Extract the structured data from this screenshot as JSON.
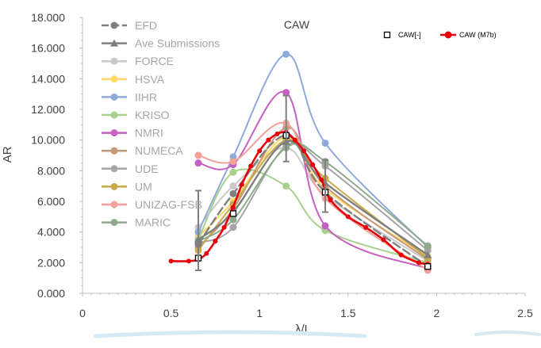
{
  "chart_data": {
    "type": "line",
    "title": "CAW",
    "xlabel": "λ/L",
    "ylabel": "AR",
    "xlim": [
      0,
      2.5
    ],
    "ylim": [
      0,
      18
    ],
    "x_ticks": [
      "0",
      "0.5",
      "1",
      "1.5",
      "2",
      "2.5"
    ],
    "y_ticks": [
      "0.000",
      "2.000",
      "4.000",
      "6.000",
      "8.000",
      "10.000",
      "12.000",
      "14.000",
      "16.000",
      "18.000"
    ],
    "legend_left_position": "top-left",
    "legend_right_position": "top-right",
    "series": [
      {
        "name": "EFD",
        "color": "#7f7f7f",
        "style": "dash",
        "marker": "circle",
        "legend": "left",
        "label_color": "#a6a6a6",
        "points": [
          [
            0.654,
            3.2
          ],
          [
            0.851,
            6.5
          ],
          [
            1.15,
            10.3
          ],
          [
            1.371,
            6.6
          ],
          [
            1.95,
            1.75
          ]
        ]
      },
      {
        "name": "Ave Submissions",
        "color": "#7f7f7f",
        "style": "solid",
        "marker": "triangle",
        "legend": "left",
        "label_color": "#a6a6a6",
        "points": [
          [
            0.654,
            3.5
          ],
          [
            0.851,
            5.3
          ],
          [
            1.15,
            9.9
          ],
          [
            1.371,
            7.2
          ],
          [
            1.95,
            2.5
          ]
        ]
      },
      {
        "name": "FORCE",
        "color": "#c9c9c9",
        "style": "solid",
        "marker": "circle",
        "legend": "left",
        "label_color": "#a6a6a6",
        "points": [
          [
            0.654,
            4.3
          ],
          [
            0.851,
            7.0
          ],
          [
            1.15,
            9.5
          ],
          [
            1.371,
            6.4
          ],
          [
            1.95,
            2.1
          ]
        ]
      },
      {
        "name": "HSVA",
        "color": "#ffd966",
        "style": "solid",
        "marker": "circle",
        "legend": "left",
        "label_color": "#a6a6a6",
        "points": [
          [
            0.654,
            3.7
          ],
          [
            0.851,
            6.0
          ],
          [
            1.15,
            10.2
          ],
          [
            1.371,
            6.8
          ],
          [
            1.95,
            2.4
          ]
        ]
      },
      {
        "name": "IIHR",
        "color": "#8eaadb",
        "style": "solid",
        "marker": "circle",
        "legend": "left",
        "label_color": "#a6a6a6",
        "points": [
          [
            0.654,
            4.0
          ],
          [
            0.851,
            8.9
          ],
          [
            1.15,
            15.6
          ],
          [
            1.371,
            9.8
          ],
          [
            1.95,
            3.0
          ]
        ]
      },
      {
        "name": "KRISO",
        "color": "#a9d18e",
        "style": "solid",
        "marker": "circle",
        "legend": "left",
        "label_color": "#a6a6a6",
        "points": [
          [
            0.654,
            3.5
          ],
          [
            0.851,
            7.9
          ],
          [
            1.15,
            7.0
          ],
          [
            1.371,
            4.1
          ],
          [
            1.95,
            2.0
          ]
        ]
      },
      {
        "name": "NMRI",
        "color": "#c55fc2",
        "style": "solid",
        "marker": "circle",
        "legend": "left",
        "label_color": "#a6a6a6",
        "points": [
          [
            0.654,
            8.5
          ],
          [
            0.851,
            8.4
          ],
          [
            1.15,
            13.1
          ],
          [
            1.371,
            4.4
          ],
          [
            1.95,
            1.6
          ]
        ]
      },
      {
        "name": "NUMECA",
        "color": "#c39a7a",
        "style": "solid",
        "marker": "circle",
        "legend": "left",
        "label_color": "#a6a6a6",
        "points": [
          [
            0.654,
            3.0
          ],
          [
            0.851,
            5.5
          ],
          [
            1.15,
            10.8
          ],
          [
            1.371,
            7.0
          ],
          [
            1.95,
            2.2
          ]
        ]
      },
      {
        "name": "UDE",
        "color": "#a5a5a5",
        "style": "solid",
        "marker": "circle",
        "legend": "left",
        "label_color": "#a6a6a6",
        "points": [
          [
            0.654,
            3.3
          ],
          [
            0.851,
            4.3
          ],
          [
            1.15,
            9.6
          ],
          [
            1.371,
            8.3
          ],
          [
            1.95,
            2.8
          ]
        ]
      },
      {
        "name": "UM",
        "color": "#c9a94a",
        "style": "solid",
        "marker": "circle",
        "legend": "left",
        "label_color": "#a6a6a6",
        "points": [
          [
            0.654,
            2.8
          ],
          [
            0.851,
            5.8
          ],
          [
            1.15,
            10.0
          ],
          [
            1.371,
            7.5
          ],
          [
            1.95,
            2.3
          ]
        ]
      },
      {
        "name": "UNIZAG-FSB",
        "color": "#f4a09a",
        "style": "solid",
        "marker": "circle",
        "legend": "left",
        "label_color": "#a6a6a6",
        "points": [
          [
            0.654,
            9.0
          ],
          [
            0.851,
            8.6
          ],
          [
            1.15,
            11.1
          ],
          [
            1.371,
            6.2
          ],
          [
            1.95,
            1.5
          ]
        ]
      },
      {
        "name": "MARIC",
        "color": "#8faa8b",
        "style": "solid",
        "marker": "circle",
        "legend": "left",
        "label_color": "#a6a6a6",
        "points": [
          [
            0.654,
            3.4
          ],
          [
            0.851,
            4.8
          ],
          [
            1.15,
            9.5
          ],
          [
            1.371,
            8.6
          ],
          [
            1.95,
            3.1
          ]
        ]
      },
      {
        "name": "CAW[-]",
        "color": "#000000",
        "style": "none",
        "marker": "square",
        "legend": "right",
        "label_color": "#000000",
        "points": [
          [
            0.654,
            2.3
          ],
          [
            0.851,
            5.2
          ],
          [
            1.15,
            10.3
          ],
          [
            1.371,
            6.6
          ],
          [
            1.95,
            1.75
          ]
        ]
      },
      {
        "name": "CAW (M7b)",
        "color": "#e8000b",
        "style": "solid",
        "marker": "dot",
        "legend": "right",
        "label_color": "#000000",
        "points": [
          [
            0.5,
            2.1
          ],
          [
            0.6,
            2.1
          ],
          [
            0.654,
            2.2
          ],
          [
            0.7,
            2.6
          ],
          [
            0.75,
            3.4
          ],
          [
            0.8,
            4.3
          ],
          [
            0.85,
            5.6
          ],
          [
            0.9,
            7.1
          ],
          [
            0.95,
            8.3
          ],
          [
            1.0,
            9.3
          ],
          [
            1.05,
            10.0
          ],
          [
            1.1,
            10.4
          ],
          [
            1.15,
            10.5
          ],
          [
            1.2,
            10.0
          ],
          [
            1.25,
            9.3
          ],
          [
            1.3,
            8.4
          ],
          [
            1.35,
            7.4
          ],
          [
            1.4,
            6.1
          ],
          [
            1.5,
            5.0
          ],
          [
            1.6,
            4.3
          ],
          [
            1.7,
            3.5
          ],
          [
            1.8,
            2.5
          ],
          [
            1.9,
            2.0
          ],
          [
            1.95,
            1.9
          ]
        ]
      }
    ],
    "error_bars": [
      {
        "x": 0.654,
        "y": 3.2,
        "low": 1.5,
        "high": 6.7
      },
      {
        "x": 1.15,
        "y": 10.3,
        "low": 8.6,
        "high": 12.9
      },
      {
        "x": 1.371,
        "y": 6.6,
        "low": 5.3,
        "high": 8.7
      }
    ],
    "grid": false
  }
}
